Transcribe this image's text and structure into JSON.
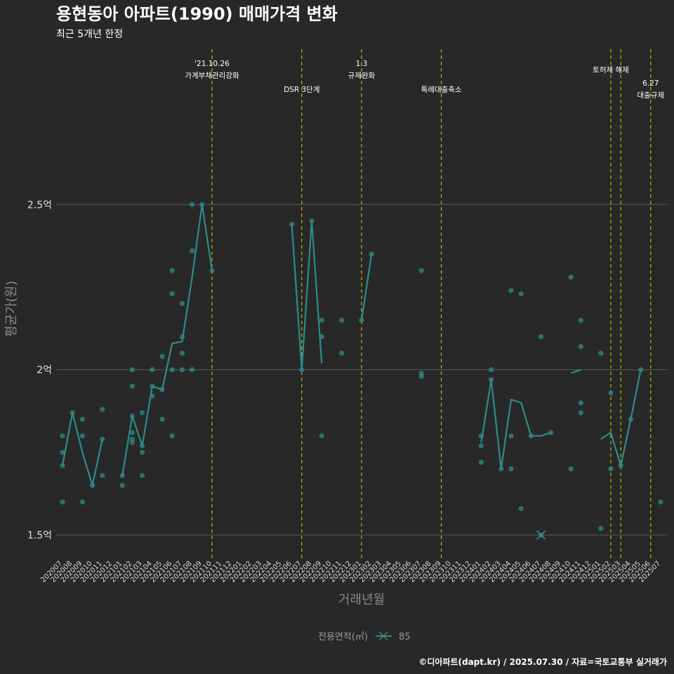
{
  "header": {
    "title": "용현동아 아파트(1990) 매매가격 변화",
    "subtitle": "최근 5개년 한정"
  },
  "legend": {
    "title": "전용면적(㎡)",
    "label": "85"
  },
  "caption": "©디아파트(dapt.kr) / 2025.07.30 / 자료=국토교통부 실거래가",
  "colors": {
    "background": "#282828",
    "series": "#2e8b8b",
    "vline": "#d6d600",
    "grid": "#5a5a5a"
  },
  "chart_data": {
    "type": "line",
    "xlabel": "거래년월",
    "ylabel": "평균가(원)",
    "ylim": [
      1.43,
      2.97
    ],
    "yticks": [
      {
        "value": 1.5,
        "label": "1.5억"
      },
      {
        "value": 2.0,
        "label": "2억"
      },
      {
        "value": 2.5,
        "label": "2.5억"
      }
    ],
    "categories": [
      "202007",
      "202008",
      "202009",
      "202010",
      "202011",
      "202012",
      "202101",
      "202102",
      "202103",
      "202104",
      "202105",
      "202106",
      "202107",
      "202108",
      "202109",
      "202110",
      "202111",
      "202112",
      "202201",
      "202202",
      "202203",
      "202204",
      "202205",
      "202206",
      "202207",
      "202208",
      "202209",
      "202210",
      "202211",
      "202212",
      "202301",
      "202302",
      "202303",
      "202304",
      "202305",
      "202306",
      "202307",
      "202308",
      "202309",
      "202310",
      "202311",
      "202312",
      "202401",
      "202402",
      "202403",
      "202404",
      "202405",
      "202406",
      "202407",
      "202408",
      "202409",
      "202410",
      "202411",
      "202412",
      "202501",
      "202502",
      "202503",
      "202504",
      "202505",
      "202506",
      "202507"
    ],
    "series": [
      {
        "name": "85",
        "line": [
          1.71,
          1.87,
          1.75,
          1.65,
          1.79,
          null,
          1.68,
          1.86,
          1.77,
          1.95,
          1.94,
          2.08,
          2.085,
          2.28,
          2.5,
          2.3,
          null,
          null,
          null,
          null,
          null,
          null,
          null,
          2.44,
          2.0,
          2.45,
          2.02,
          null,
          null,
          null,
          2.15,
          2.35,
          null,
          null,
          null,
          null,
          null,
          null,
          null,
          null,
          null,
          null,
          1.78,
          1.97,
          1.7,
          1.91,
          1.9,
          1.8,
          1.8,
          1.81,
          null,
          1.99,
          2.0,
          null,
          1.79,
          1.81,
          1.71,
          1.85,
          2.0,
          null,
          null
        ],
        "points": [
          [
            "202007",
            1.6
          ],
          [
            "202007",
            1.71
          ],
          [
            "202007",
            1.75
          ],
          [
            "202007",
            1.8
          ],
          [
            "202008",
            1.87
          ],
          [
            "202009",
            1.6
          ],
          [
            "202009",
            1.8
          ],
          [
            "202009",
            1.85
          ],
          [
            "202010",
            1.65
          ],
          [
            "202011",
            1.68
          ],
          [
            "202011",
            1.79
          ],
          [
            "202011",
            1.88
          ],
          [
            "202101",
            1.65
          ],
          [
            "202101",
            1.68
          ],
          [
            "202102",
            1.78
          ],
          [
            "202102",
            1.79
          ],
          [
            "202102",
            1.81
          ],
          [
            "202102",
            1.86
          ],
          [
            "202102",
            1.95
          ],
          [
            "202102",
            2.0
          ],
          [
            "202103",
            1.68
          ],
          [
            "202103",
            1.75
          ],
          [
            "202103",
            1.77
          ],
          [
            "202103",
            1.87
          ],
          [
            "202104",
            1.92
          ],
          [
            "202104",
            1.95
          ],
          [
            "202104",
            2.0
          ],
          [
            "202105",
            1.85
          ],
          [
            "202105",
            1.94
          ],
          [
            "202105",
            2.04
          ],
          [
            "202106",
            1.8
          ],
          [
            "202106",
            2.0
          ],
          [
            "202106",
            2.23
          ],
          [
            "202106",
            2.3
          ],
          [
            "202107",
            2.0
          ],
          [
            "202107",
            2.05
          ],
          [
            "202107",
            2.1
          ],
          [
            "202107",
            2.2
          ],
          [
            "202108",
            2.0
          ],
          [
            "202108",
            2.36
          ],
          [
            "202108",
            2.5
          ],
          [
            "202109",
            2.5
          ],
          [
            "202110",
            2.3
          ],
          [
            "202206",
            2.44
          ],
          [
            "202207",
            2.0
          ],
          [
            "202208",
            2.45
          ],
          [
            "202209",
            1.8
          ],
          [
            "202209",
            2.1
          ],
          [
            "202209",
            2.15
          ],
          [
            "202211",
            2.05
          ],
          [
            "202211",
            2.15
          ],
          [
            "202301",
            2.15
          ],
          [
            "202302",
            2.35
          ],
          [
            "202307",
            1.98
          ],
          [
            "202307",
            1.99
          ],
          [
            "202307",
            2.3
          ],
          [
            "202401",
            1.72
          ],
          [
            "202401",
            1.77
          ],
          [
            "202401",
            1.8
          ],
          [
            "202402",
            1.97
          ],
          [
            "202402",
            2.0
          ],
          [
            "202403",
            1.7
          ],
          [
            "202404",
            1.7
          ],
          [
            "202404",
            1.8
          ],
          [
            "202404",
            2.24
          ],
          [
            "202405",
            1.58
          ],
          [
            "202405",
            2.23
          ],
          [
            "202406",
            1.8
          ],
          [
            "202407",
            1.5
          ],
          [
            "202407",
            2.1
          ],
          [
            "202408",
            1.81
          ],
          [
            "202410",
            1.7
          ],
          [
            "202410",
            2.28
          ],
          [
            "202411",
            1.87
          ],
          [
            "202411",
            1.9
          ],
          [
            "202411",
            2.07
          ],
          [
            "202411",
            2.15
          ],
          [
            "202501",
            1.52
          ],
          [
            "202501",
            2.05
          ],
          [
            "202502",
            1.7
          ],
          [
            "202502",
            1.93
          ],
          [
            "202503",
            1.71
          ],
          [
            "202504",
            1.85
          ],
          [
            "202505",
            2.0
          ],
          [
            "202507",
            1.6
          ]
        ],
        "cross_marks": [
          [
            "202407",
            1.5
          ]
        ]
      }
    ],
    "events": [
      {
        "x": 15.0,
        "label1": "'21.10.26",
        "label2": "가계부채관리강화"
      },
      {
        "x": 24.0,
        "label1": "DSR 3단계",
        "label2": ""
      },
      {
        "x": 30.0,
        "label1": "1.3",
        "label2": "규제완화"
      },
      {
        "x": 38.0,
        "label1": "특례대출축소",
        "label2": ""
      },
      {
        "x": 55.0,
        "label1": "토허제 해제",
        "label2": ""
      },
      {
        "x": 56.0,
        "label1": "",
        "label2": ""
      },
      {
        "x": 59.0,
        "label1": "6.27",
        "label2": "대출규제"
      }
    ]
  }
}
